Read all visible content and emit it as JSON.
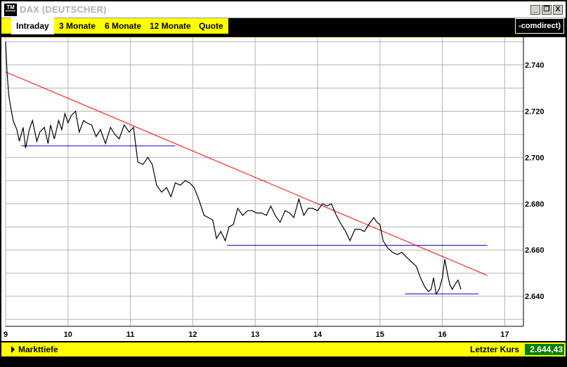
{
  "window": {
    "title": "DAX (DEUTSCHER)",
    "logo_text": "TM",
    "controls": [
      "_",
      "❐",
      "X"
    ]
  },
  "tabs": [
    {
      "label": "Intraday",
      "active": true
    },
    {
      "label": "3 Monate",
      "active": false
    },
    {
      "label": "6 Monate",
      "active": false
    },
    {
      "label": "12 Monate",
      "active": false
    },
    {
      "label": "Quote",
      "active": false
    }
  ],
  "brand": "-comdirect)",
  "footer": {
    "markttiefe_label": "Markttiefe",
    "last_price_label": "Letzter Kurs",
    "last_price_value": "2.644,43"
  },
  "colors": {
    "accent": "#ffff00",
    "price_line": "#000000",
    "trend_line": "#ff0000",
    "support_line": "#0000c8",
    "grid": "#b4b4b4",
    "last_price_bg": "#008000"
  },
  "chart_data": {
    "type": "line",
    "xlabel": "",
    "ylabel": "",
    "x_ticks": [
      "9",
      "10",
      "11",
      "12",
      "13",
      "14",
      "15",
      "16",
      "17"
    ],
    "y_ticks": [
      "2.640",
      "2.660",
      "2.680",
      "2.700",
      "2.720",
      "2.740"
    ],
    "xlim": [
      9,
      17.3
    ],
    "ylim": [
      2627,
      2752
    ],
    "reference_line_y": 2752,
    "grid": true,
    "series": [
      {
        "values_x": [
          9.0,
          9.02,
          9.05,
          9.08,
          9.12,
          9.18,
          9.22,
          9.28,
          9.32,
          9.38,
          9.43,
          9.5,
          9.55,
          9.62,
          9.68,
          9.72,
          9.78,
          9.85,
          9.9,
          9.95,
          10.0,
          10.05,
          10.12,
          10.18,
          10.25,
          10.3,
          10.38,
          10.45,
          10.52,
          10.6,
          10.68,
          10.75,
          10.82,
          10.9,
          10.98,
          11.05,
          11.12,
          11.2,
          11.28,
          11.35,
          11.42,
          11.5,
          11.58,
          11.65,
          11.72,
          11.8,
          11.88,
          11.95,
          12.02,
          12.08,
          12.12,
          12.18,
          12.25,
          12.32,
          12.38,
          12.45,
          12.52,
          12.58,
          12.65,
          12.72,
          12.8,
          12.88,
          12.95,
          13.02,
          13.1,
          13.18,
          13.25,
          13.32,
          13.4,
          13.48,
          13.55,
          13.62,
          13.7,
          13.78,
          13.85,
          13.92,
          14.0,
          14.08,
          14.15,
          14.22,
          14.3,
          14.38,
          14.45,
          14.52,
          14.6,
          14.68,
          14.75,
          14.82,
          14.9,
          14.95,
          15.0,
          15.05,
          15.12,
          15.2,
          15.28,
          15.35,
          15.42,
          15.5,
          15.58,
          15.65,
          15.72,
          15.78,
          15.82,
          15.86,
          15.9,
          15.95,
          16.0,
          16.04,
          16.08,
          16.12,
          16.16,
          16.2,
          16.25,
          16.3
        ],
        "values_y": [
          2750,
          2738,
          2727,
          2722,
          2716,
          2712,
          2707,
          2713,
          2704,
          2712,
          2716,
          2707,
          2711,
          2713,
          2706,
          2714,
          2708,
          2716,
          2712,
          2719,
          2715,
          2718,
          2720,
          2711,
          2716,
          2715,
          2714,
          2709,
          2712,
          2706,
          2713,
          2710,
          2708,
          2714,
          2711,
          2713,
          2698,
          2697,
          2700,
          2697,
          2688,
          2685,
          2687,
          2683,
          2689,
          2688,
          2690,
          2689,
          2687,
          2683,
          2680,
          2675,
          2674,
          2673,
          2665,
          2668,
          2664,
          2670,
          2671,
          2678,
          2675,
          2677,
          2677,
          2676,
          2676,
          2675,
          2679,
          2675,
          2672,
          2677,
          2676,
          2674,
          2682,
          2675,
          2678,
          2678,
          2677,
          2680,
          2679,
          2680,
          2675,
          2671,
          2668,
          2664,
          2669,
          2669,
          2668,
          2671,
          2674,
          2672,
          2671,
          2664,
          2661,
          2659,
          2658,
          2659,
          2657,
          2655,
          2653,
          2648,
          2644,
          2642,
          2643,
          2648,
          2641,
          2643,
          2648,
          2656,
          2650,
          2645,
          2643,
          2645,
          2647,
          2643
        ]
      }
    ],
    "trend_line": {
      "x": [
        9.0,
        16.72
      ],
      "y": [
        2737,
        2649
      ]
    },
    "support_lines": [
      {
        "x": [
          9.25,
          11.72
        ],
        "y": [
          2705,
          2705
        ]
      },
      {
        "x": [
          12.55,
          16.72
        ],
        "y": [
          2662,
          2662
        ]
      },
      {
        "x": [
          15.4,
          16.58
        ],
        "y": [
          2641,
          2641
        ]
      }
    ]
  }
}
